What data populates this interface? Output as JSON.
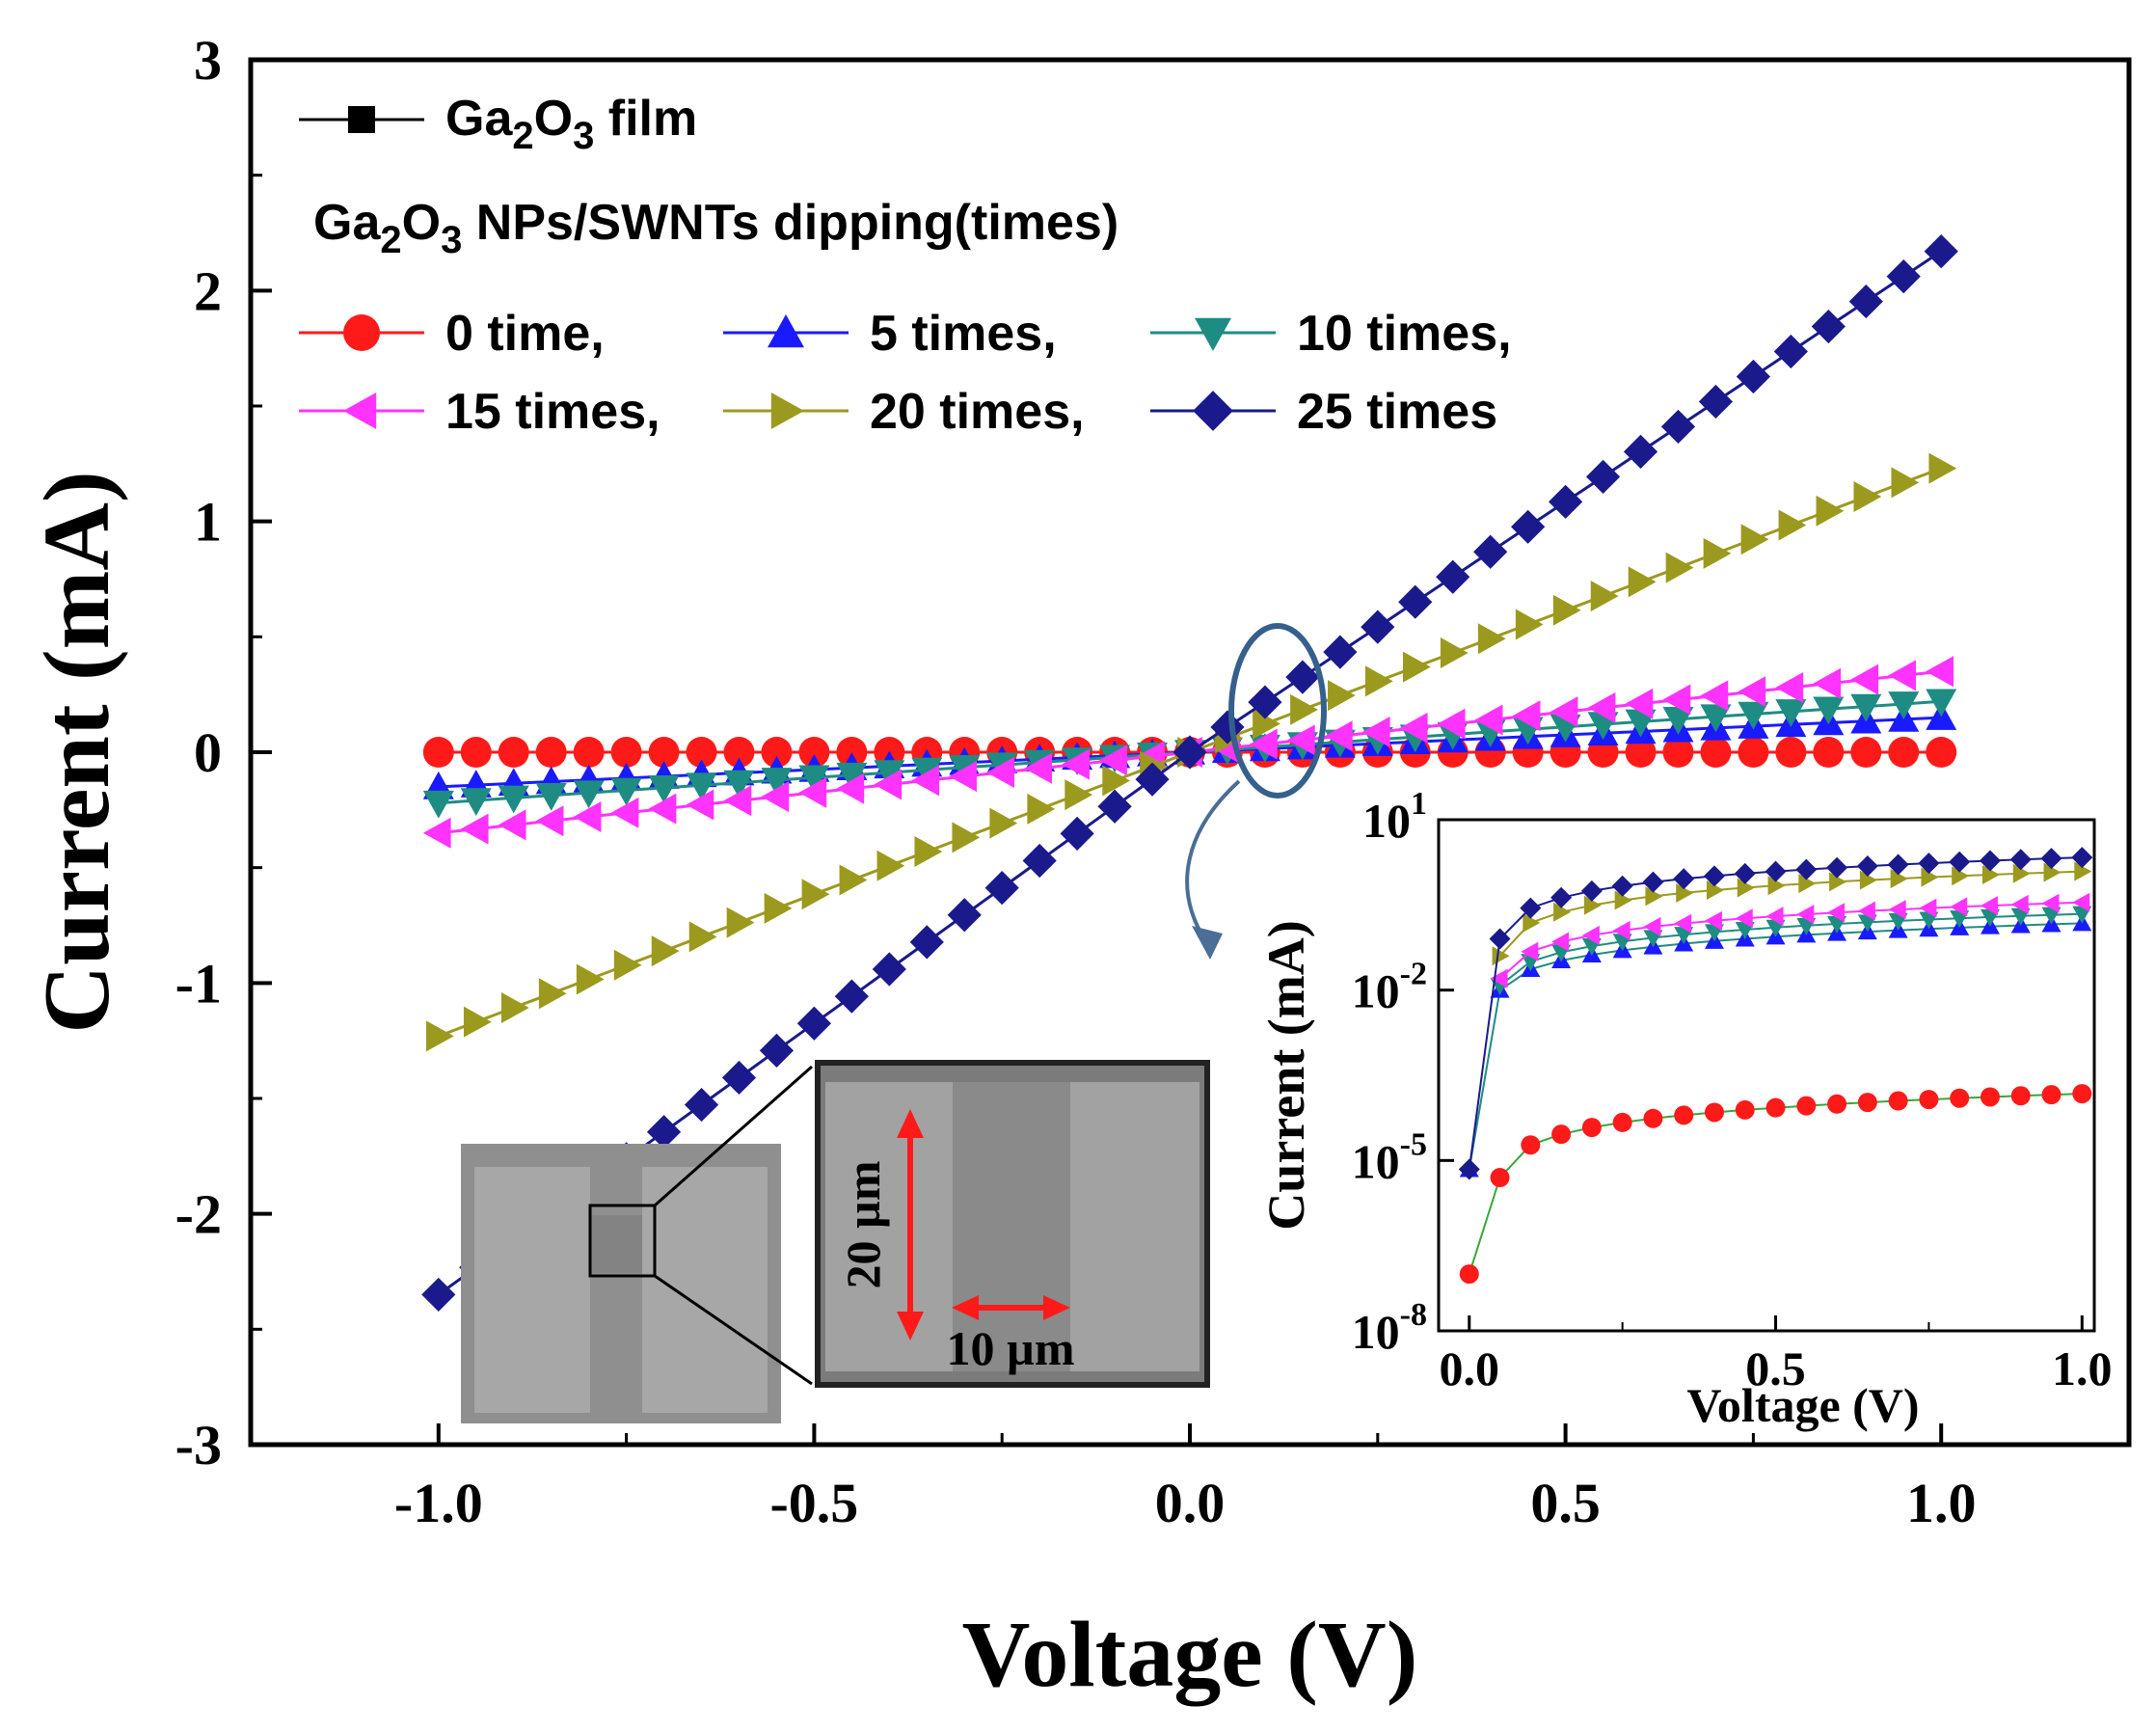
{
  "chart_data": {
    "type": "line",
    "xlabel": "Voltage (V)",
    "ylabel": "Current (mA)",
    "xlim": [
      -1.25,
      1.25
    ],
    "ylim": [
      -3,
      3
    ],
    "x_ticks": [
      "-1.0",
      "-0.5",
      "0.0",
      "0.5",
      "1.0"
    ],
    "y_ticks": [
      "-3",
      "-2",
      "-1",
      "0",
      "1",
      "2",
      "3"
    ],
    "legend": {
      "placement": "top-left",
      "film_label": "Ga₂O₃ film",
      "group_title": "Ga₂O₃ NPs/SWNTs dipping(times)"
    },
    "x_range": [
      -1.0,
      1.0
    ],
    "point_step": 0.05,
    "series": [
      {
        "name": "Ga₂O₃ film",
        "legend_label": "Ga₂O₃ film",
        "marker": "square",
        "color": "#000000",
        "line_color": "#000000",
        "slope": 0.0,
        "shown_in_plot": false
      },
      {
        "name": "0 time",
        "legend_label": "0 time,",
        "marker": "circle",
        "color": "#ff1a1a",
        "line_color": "#ff1a1a",
        "slope": 0.0
      },
      {
        "name": "5 times",
        "legend_label": "5 times,",
        "marker": "triangle-up",
        "color": "#1a1aff",
        "line_color": "#1a1aff",
        "slope": 0.15
      },
      {
        "name": "10 times",
        "legend_label": "10 times,",
        "marker": "triangle-down",
        "color": "#1e8c82",
        "line_color": "#1e8c82",
        "slope": 0.22
      },
      {
        "name": "15 times",
        "legend_label": "15 times,",
        "marker": "triangle-left",
        "color": "#ff33ff",
        "line_color": "#ff33ff",
        "slope": 0.35
      },
      {
        "name": "20 times",
        "legend_label": "20 times,",
        "marker": "triangle-right",
        "color": "#9c9a1e",
        "line_color": "#9c9a1e",
        "slope": 1.23
      },
      {
        "name": "25 times",
        "legend_label": "25 times",
        "marker": "diamond",
        "color": "#1a1a8c",
        "line_color": "#1a1a8c",
        "slope": 2.25,
        "endpoints": [
          -2.35,
          2.17
        ]
      }
    ],
    "inset_log": {
      "type": "line",
      "xlabel": "Voltage (V)",
      "ylabel": "Current (mA)",
      "xlim": [
        -0.05,
        1.02
      ],
      "log_exp_range": [
        -8,
        1
      ],
      "y_scale": "log",
      "x_ticks": [
        "0.0",
        "0.5",
        "1.0"
      ],
      "y_tick_exponents": [
        "1",
        "-2",
        "-5",
        "-8"
      ],
      "y_tick_base": "10",
      "series": [
        {
          "name": "0 time",
          "color": "#ff1a1a",
          "marker": "circle",
          "values_mA": {
            "0.0": 1e-07,
            "0.05": 5e-06,
            "1.0": 0.00015
          }
        },
        {
          "name": "5 times",
          "color": "#1a1aff",
          "marker": "triangle-up",
          "values_mA": {
            "0.0": 7e-06,
            "0.05": 0.01,
            "1.0": 0.15
          }
        },
        {
          "name": "10 times",
          "color": "#1e8c82",
          "marker": "triangle-down",
          "values_mA": {
            "0.05": 0.012,
            "1.0": 0.22
          }
        },
        {
          "name": "15 times",
          "color": "#ff33ff",
          "marker": "triangle-left",
          "values_mA": {
            "0.05": 0.016,
            "1.0": 0.35
          }
        },
        {
          "name": "20 times",
          "color": "#9c9a1e",
          "marker": "triangle-right",
          "values_mA": {
            "0.05": 0.04,
            "1.0": 1.23
          }
        },
        {
          "name": "25 times",
          "color": "#1a1a8c",
          "marker": "diamond",
          "values_mA": {
            "0.0": 7e-06,
            "0.05": 0.08,
            "1.0": 2.17
          }
        }
      ]
    },
    "sem_inset": {
      "scale_vertical": "20 µm",
      "scale_horizontal": "10 µm"
    }
  }
}
